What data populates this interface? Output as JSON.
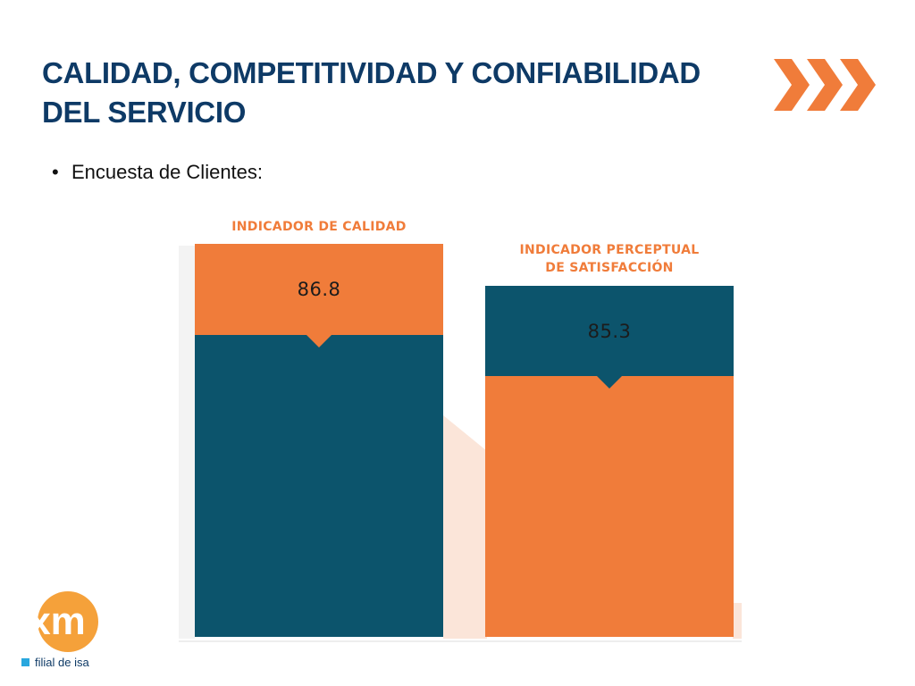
{
  "slide": {
    "title_line1": "CALIDAD, COMPETITIVIDAD Y CONFIABILIDAD",
    "title_line2": "DEL SERVICIO",
    "bullet": "Encuesta de Clientes:"
  },
  "icons": {
    "chevrons": "triple-chevron-right-icon",
    "bullet": "bullet-dot-icon"
  },
  "colors": {
    "title": "#0e3a66",
    "orange": "#f07c3a",
    "teal": "#0c546c",
    "light_orange": "#fbe5d9"
  },
  "indicators": [
    {
      "label_line1": "INDICADOR DE CALIDAD",
      "label_line2": "",
      "value": "86.8"
    },
    {
      "label_line1": "INDICADOR PERCEPTUAL",
      "label_line2": "DE SATISFACCIÓN",
      "value": "85.3"
    }
  ],
  "logo": {
    "text": "xm",
    "caption": "filial de isa"
  }
}
